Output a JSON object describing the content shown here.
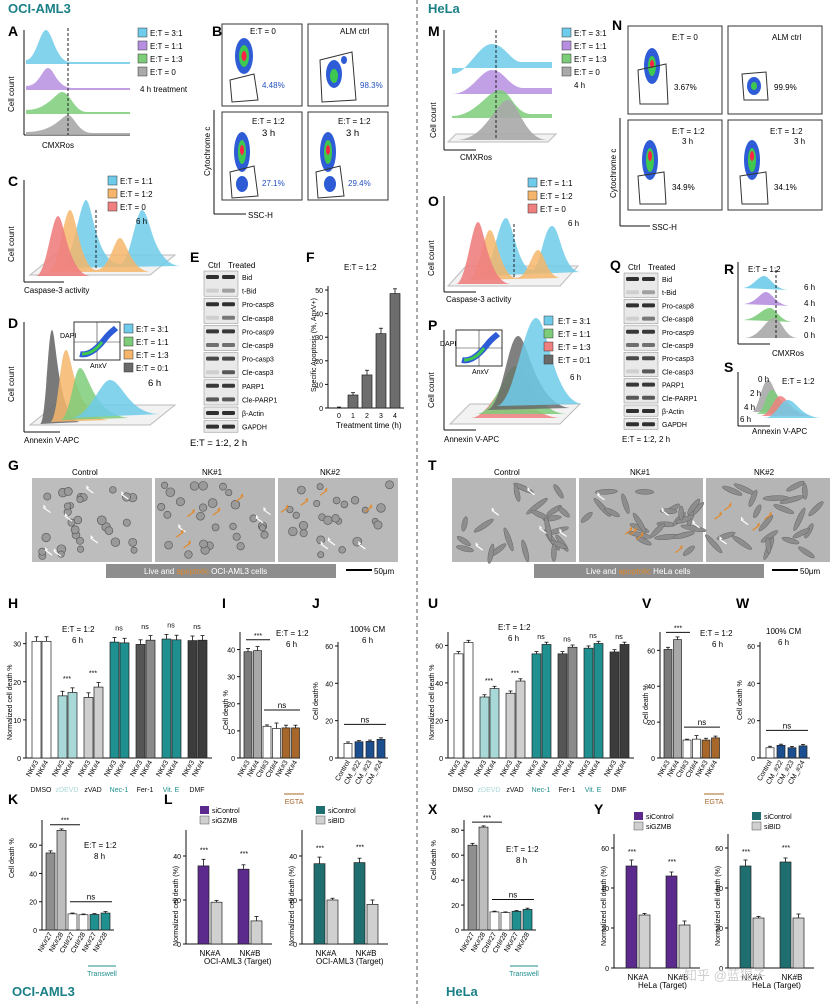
{
  "colors": {
    "teal_title": "#1a7f86",
    "sky": "#6ecbea",
    "violet": "#b78fe0",
    "green": "#7dcc7a",
    "grey": "#a9a9a9",
    "salmon": "#f08080",
    "orange": "#f5b66b",
    "teal_bar": "#1f8f8f",
    "light_teal": "#a9d8d8",
    "dark_grey": "#555555",
    "brown": "#a8672a",
    "purple": "#5b2a8c",
    "dark_teal": "#1f6f70",
    "light_grey": "#d0d0d0",
    "navy": "#1c4f8f",
    "overlay_orange": "#e2892b"
  },
  "left": {
    "title": "OCI-AML3",
    "bottom_title": "OCI-AML3",
    "A": {
      "label": "A",
      "legend": [
        "E:T = 3:1",
        "E:T = 1:1",
        "E:T = 1:3",
        "E:T = 0"
      ],
      "note": "4 h treatment",
      "xlabel": "CMXRos",
      "ylabel": "Cell count"
    },
    "B": {
      "label": "B",
      "plots": [
        {
          "title": "E:T = 0",
          "sub": "",
          "pct": "4.48%"
        },
        {
          "title": "ALM ctrl",
          "sub": "",
          "pct": "98.3%"
        },
        {
          "title": "E:T = 1:2",
          "sub": "3 h",
          "pct": "27.1%"
        },
        {
          "title": "E:T = 1:2",
          "sub": "3 h",
          "pct": "29.4%"
        }
      ],
      "xlabel": "SSC-H",
      "ylabel": "Cytochrome c"
    },
    "C": {
      "label": "C",
      "legend": [
        "E:T = 1:1",
        "E:T = 1:2",
        "E:T = 0"
      ],
      "note": "6 h",
      "xlabel": "Caspase-3 activity",
      "ylabel": "Cell count"
    },
    "D": {
      "label": "D",
      "legend": [
        "E:T = 3:1",
        "E:T = 1:1",
        "E:T = 1:3",
        "E:T = 0:1"
      ],
      "note": "6 h",
      "xlabel": "Annexin V-APC",
      "ylabel": "Cell count",
      "inset_x": "AnxV",
      "inset_y": "DAPI"
    },
    "E": {
      "label": "E",
      "header": [
        "Ctrl",
        "Treated"
      ],
      "bands": [
        "Bid",
        "t-Bid",
        "Pro-casp8",
        "Cle-casp8",
        "Pro-casp9",
        "Cle-casp9",
        "Pro-casp3",
        "Cle-casp3",
        "PARP1",
        "Cle-PARP1",
        "β-Actin",
        "GAPDH"
      ],
      "footer": "E:T = 1:2,  2 h"
    },
    "F": {
      "label": "F"
    },
    "G": {
      "label": "G",
      "headers": [
        "Control",
        "NK#1",
        "NK#2"
      ],
      "caption_pre": "Live and ",
      "caption_apop": "apoptotic",
      "caption_post": " OCI-AML3 cells",
      "scale": "50μm"
    },
    "H": {
      "label": "H",
      "ylabel": "Normalized cell death %",
      "note": "E:T = 1:2",
      "note2": "6 h",
      "ticks": [
        "0",
        "10",
        "20",
        "30"
      ],
      "pair": [
        "NK#3",
        "NK#4"
      ],
      "groups": [
        "DMSO",
        "zDEVD",
        "zVAD",
        "Nec-1",
        "Fer-1",
        "Vit. E",
        "DMF"
      ],
      "stars": [
        "",
        "***",
        "***",
        "ns",
        "ns",
        "ns",
        "ns"
      ]
    },
    "I": {
      "label": "I",
      "ylabel": "Cell death %",
      "note": "E:T = 1:2",
      "note2": "6 h",
      "ticks": [
        "0",
        "10",
        "20",
        "30",
        "40"
      ],
      "sig": "***",
      "ns": "ns",
      "bottom": "EGTA",
      "cats": [
        "NK#3",
        "NK#4",
        "Ctrl#3",
        "Ctrl#4",
        "NK#3",
        "NK#4"
      ]
    },
    "J": {
      "label": "J",
      "ylabel": "Cell death%",
      "note": "100% CM",
      "note2": "6 h",
      "ticks": [
        "0",
        "20",
        "40",
        "60"
      ],
      "ns": "ns",
      "cats": [
        "Control",
        "CM_#22",
        "CM_#23",
        "CM_#24"
      ]
    },
    "K": {
      "label": "K",
      "ylabel": "Cell death %",
      "note": "E:T = 1:2",
      "note2": "8 h",
      "ticks": [
        "0",
        "20",
        "40",
        "60"
      ],
      "sig": "***",
      "ns": "ns",
      "bottom": "Transwell",
      "cats": [
        "NK#27",
        "NK#28",
        "Ctrl#27",
        "Ctrl#28",
        "NK#27",
        "NK#28"
      ]
    },
    "L": {
      "label": "L",
      "ylabel": "Normalized cell death (%)",
      "ticks": [
        "0",
        "20",
        "40"
      ],
      "legend1": [
        "siControl",
        "siGZMB"
      ],
      "legend2": [
        "siControl",
        "siBID"
      ],
      "cats": [
        "NK#A",
        "NK#B"
      ],
      "xlabel": "OCI-AML3 (Target)",
      "stars": "***"
    }
  },
  "right": {
    "title": "HeLa",
    "bottom_title": "HeLa",
    "M": {
      "label": "M",
      "legend": [
        "E:T = 3:1",
        "E:T = 1:1",
        "E:T = 1:3",
        "E:T = 0"
      ],
      "note": "4 h",
      "xlabel": "CMXRos",
      "ylabel": "Cell count"
    },
    "N": {
      "label": "N",
      "plots": [
        {
          "title": "E:T = 0",
          "sub": "",
          "pct": "3.67%"
        },
        {
          "title": "ALM ctrl",
          "sub": "",
          "pct": "99.9%"
        },
        {
          "title": "E:T = 1:2",
          "sub": "3 h",
          "pct": "34.9%"
        },
        {
          "title": "E:T = 1:2",
          "sub": "3 h",
          "pct": "34.1%"
        }
      ],
      "xlabel": "SSC-H",
      "ylabel": "Cytochrome c"
    },
    "O": {
      "label": "O",
      "legend": [
        "E:T = 1:1",
        "E:T = 1:2",
        "E:T = 0"
      ],
      "note": "6 h",
      "xlabel": "Caspase-3 activity",
      "ylabel": "Cell count"
    },
    "P": {
      "label": "P",
      "legend": [
        "E:T = 3:1",
        "E:T = 1:1",
        "E:T = 1:3",
        "E:T = 0:1"
      ],
      "note": "6 h",
      "xlabel": "Annexin V-APC",
      "ylabel": "Cell count",
      "inset_x": "AnxV",
      "inset_y": "DAPI"
    },
    "Q": {
      "label": "Q",
      "header": [
        "Ctrl",
        "Treated"
      ],
      "bands": [
        "Bid",
        "t-Bid",
        "Pro-casp8",
        "Cle-casp8",
        "Pro-casp9",
        "Cle-casp9",
        "Pro-casp3",
        "Cle-casp3",
        "PARP1",
        "Cle-PARP1",
        "β-Actin",
        "GAPDH"
      ],
      "footer": "E:T = 1:2, 2 h"
    },
    "R": {
      "label": "R",
      "note": "E:T = 1:2",
      "times": [
        "6 h",
        "4 h",
        "2 h",
        "0 h"
      ],
      "xlabel": "CMXRos"
    },
    "S": {
      "label": "S",
      "note": "E:T = 1:2",
      "times": [
        "0 h",
        "2 h",
        "4 h",
        "6 h"
      ],
      "xlabel": "Annexin V-APC"
    },
    "T": {
      "label": "T",
      "headers": [
        "Control",
        "NK#1",
        "NK#2"
      ],
      "caption_pre": "Live and ",
      "caption_apop": "apoptotic",
      "caption_post": " HeLa cells",
      "scale": "50μm"
    },
    "U": {
      "label": "U",
      "ylabel": "Normalized cell death %",
      "note": "E:T = 1:2",
      "note2": "6 h",
      "ticks": [
        "0",
        "20",
        "40",
        "60"
      ],
      "pair": [
        "NK#3",
        "NK#4"
      ],
      "groups": [
        "DMSO",
        "zDEVD",
        "zVAD",
        "Nec-1",
        "Fer-1",
        "Vit. E",
        "DMF"
      ],
      "stars": [
        "",
        "***",
        "***",
        "ns",
        "ns",
        "ns",
        "ns"
      ]
    },
    "V": {
      "label": "V",
      "ylabel": "Cell death %",
      "note": "E:T = 1:2",
      "note2": "6 h",
      "ticks": [
        "0",
        "20",
        "40",
        "60"
      ],
      "sig": "***",
      "ns": "ns",
      "bottom": "EGTA",
      "cats": [
        "NK#3",
        "NK#4",
        "Ctrl#3",
        "Ctrl#4",
        "NK#3",
        "NK#4"
      ]
    },
    "W": {
      "label": "W",
      "ylabel": "Cell death %",
      "note": "100% CM",
      "note2": "6 h",
      "ticks": [
        "0",
        "20",
        "40",
        "60"
      ],
      "ns": "ns",
      "cats": [
        "Control",
        "CM_#22",
        "CM_#23",
        "CM_#24"
      ]
    },
    "X": {
      "label": "X",
      "ylabel": "Cell death %",
      "note": "E:T = 1:2",
      "note2": "8 h",
      "ticks": [
        "0",
        "20",
        "40",
        "60",
        "80"
      ],
      "sig": "***",
      "ns": "ns",
      "bottom": "Transwell",
      "cats": [
        "NK#27",
        "NK#28",
        "Ctrl#27",
        "Ctrl#28",
        "NK#27",
        "NK#28"
      ]
    },
    "Y": {
      "label": "Y",
      "ylabel": "Normalized cell death (%)",
      "ticks": [
        "0",
        "20",
        "40",
        "60"
      ],
      "legend1": [
        "siControl",
        "siGZMB"
      ],
      "legend2": [
        "siControl",
        "siBID"
      ],
      "cats": [
        "NK#A",
        "NK#B"
      ],
      "xlabel": "HeLa (Target)",
      "stars": "***"
    }
  },
  "watermark": "知乎 @蓝猩子",
  "chart_data": [
    {
      "id": "F",
      "type": "bar",
      "title": "E:T = 1:2",
      "xlabel": "Treatment time (h)",
      "ylabel": "Specific Apoptosis (%, AnxV+)",
      "categories": [
        "0",
        "1",
        "2",
        "3",
        "4"
      ],
      "values": [
        0,
        5.5,
        14,
        31.5,
        48.5
      ],
      "ylim": [
        0,
        50
      ],
      "yticks": [
        "0",
        "10",
        "20",
        "30",
        "40",
        "50"
      ]
    },
    {
      "id": "H",
      "type": "bar",
      "ylim": [
        0,
        32
      ],
      "values": [
        30.6,
        30.6,
        16.3,
        17.2,
        15.9,
        18.6,
        30.4,
        30.2,
        29.8,
        30.9,
        31.2,
        31.0,
        30.8,
        30.9
      ]
    },
    {
      "id": "I",
      "type": "bar",
      "ylim": [
        0,
        45
      ],
      "values": [
        39.2,
        39.6,
        11.7,
        10.9,
        11.1,
        11.1
      ]
    },
    {
      "id": "J",
      "type": "bar",
      "ylim": [
        0,
        60
      ],
      "values": [
        7.8,
        8.7,
        8.9,
        10.0
      ]
    },
    {
      "id": "K",
      "type": "bar",
      "ylim": [
        0,
        75
      ],
      "values": [
        54.5,
        70.5,
        11.4,
        10.8,
        11.0,
        12.0
      ]
    },
    {
      "id": "L1",
      "type": "bar",
      "ylim": [
        0,
        50
      ],
      "series": [
        {
          "name": "siControl",
          "values": [
            35.5,
            34.0
          ]
        },
        {
          "name": "siGZMB",
          "values": [
            19.0,
            10.5
          ]
        }
      ]
    },
    {
      "id": "L2",
      "type": "bar",
      "ylim": [
        0,
        50
      ],
      "series": [
        {
          "name": "siControl",
          "values": [
            36.5,
            37.0
          ]
        },
        {
          "name": "siBID",
          "values": [
            20.0,
            18.0
          ]
        }
      ]
    },
    {
      "id": "U",
      "type": "bar",
      "ylim": [
        0,
        65
      ],
      "values": [
        55.5,
        61.5,
        32.5,
        37.0,
        34.5,
        41.0,
        55.5,
        60.5,
        55.5,
        59.0,
        58.5,
        61.0,
        56.5,
        60.5
      ]
    },
    {
      "id": "V",
      "type": "bar",
      "ylim": [
        0,
        68
      ],
      "values": [
        60.5,
        66.0,
        10.0,
        10.5,
        10.0,
        11.2
      ]
    },
    {
      "id": "W",
      "type": "bar",
      "ylim": [
        0,
        60
      ],
      "values": [
        5.5,
        6.8,
        5.5,
        6.5
      ]
    },
    {
      "id": "X",
      "type": "bar",
      "ylim": [
        0,
        85
      ],
      "values": [
        68.0,
        82.5,
        14.5,
        14.0,
        15.0,
        16.5
      ]
    },
    {
      "id": "Y1",
      "type": "bar",
      "ylim": [
        0,
        65
      ],
      "series": [
        {
          "name": "siControl",
          "values": [
            51.0,
            46.0
          ]
        },
        {
          "name": "siGZMB",
          "values": [
            26.5,
            21.5
          ]
        }
      ]
    },
    {
      "id": "Y2",
      "type": "bar",
      "ylim": [
        0,
        65
      ],
      "series": [
        {
          "name": "siControl",
          "values": [
            51.0,
            53.0
          ]
        },
        {
          "name": "siBID",
          "values": [
            25.0,
            25.0
          ]
        }
      ]
    }
  ]
}
